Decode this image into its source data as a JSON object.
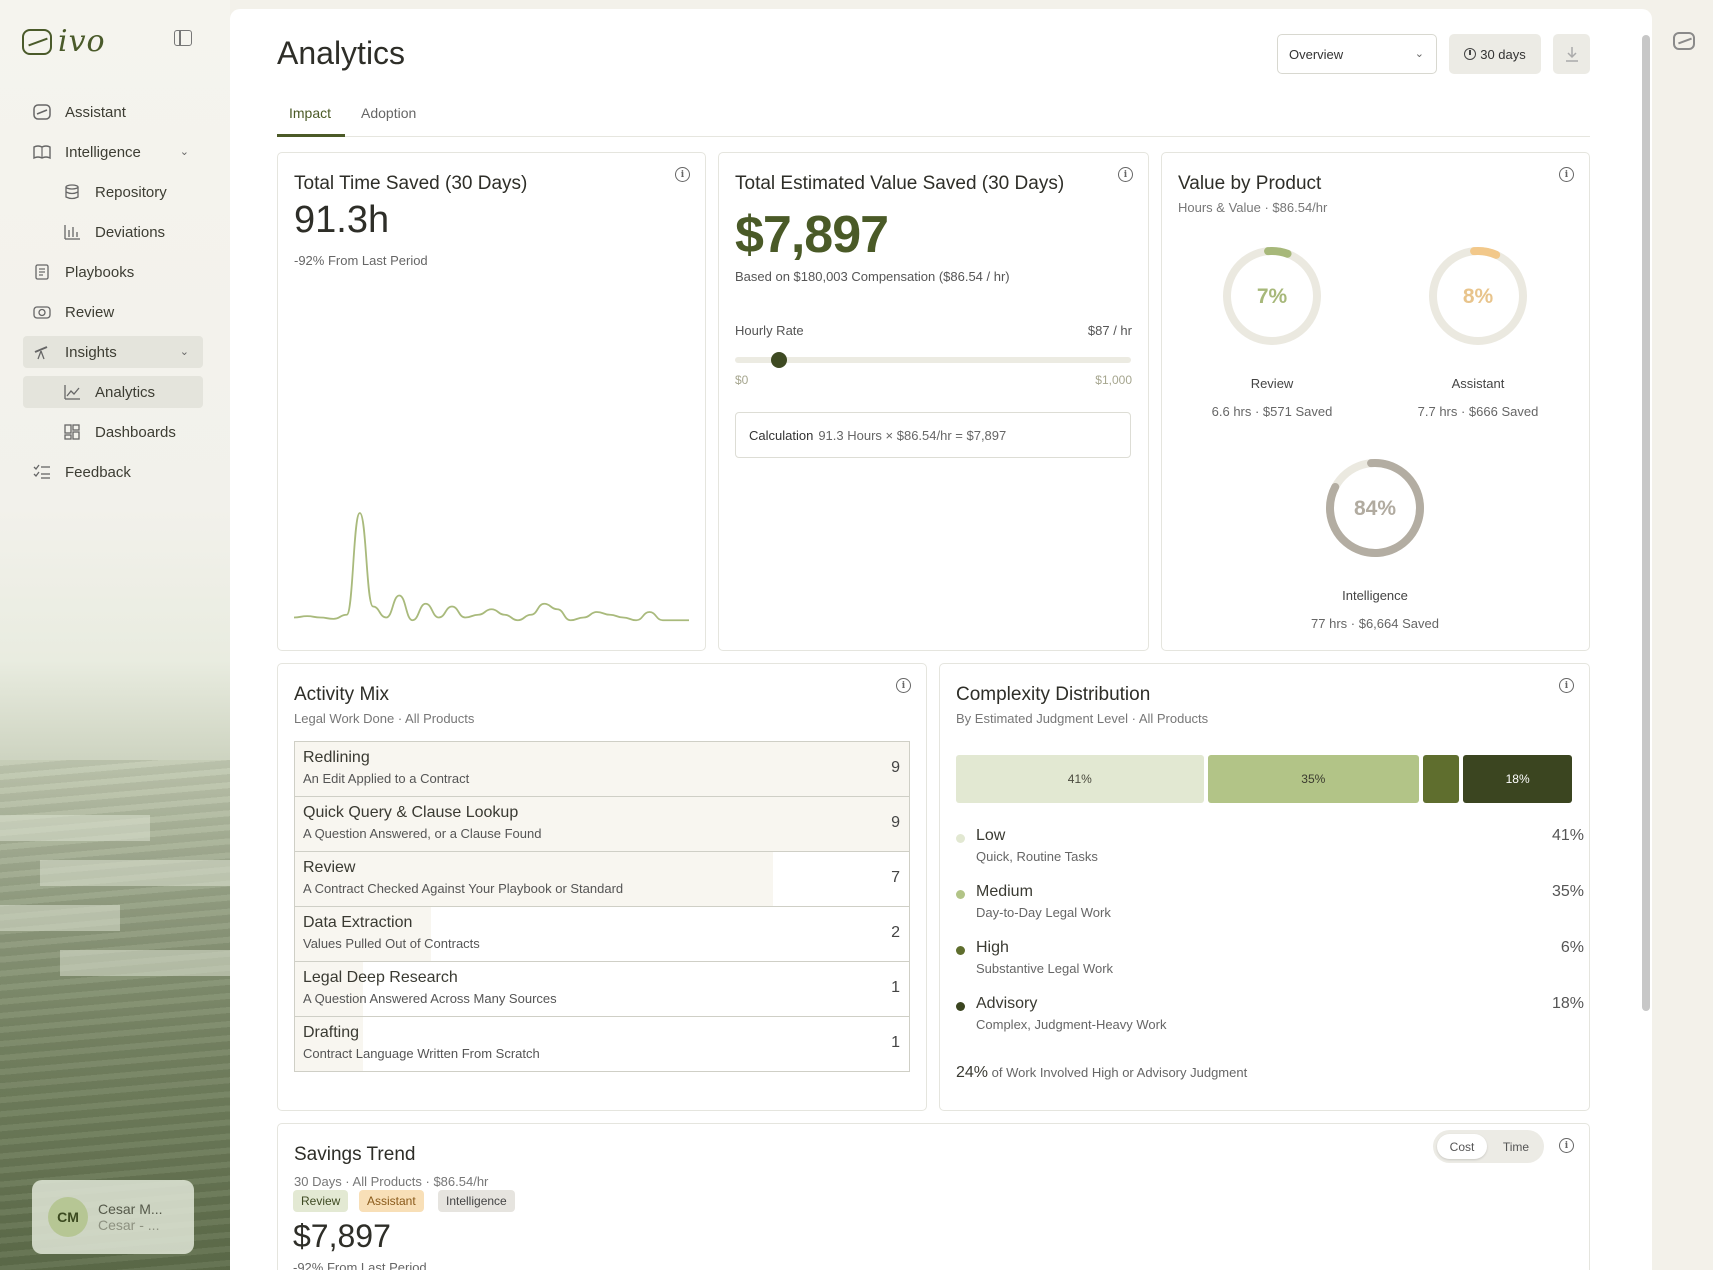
{
  "brand": {
    "name": "ivo"
  },
  "sidebar": {
    "items": [
      {
        "label": "Assistant"
      },
      {
        "label": "Intelligence"
      },
      {
        "label": "Repository"
      },
      {
        "label": "Deviations"
      },
      {
        "label": "Playbooks"
      },
      {
        "label": "Review"
      },
      {
        "label": "Insights"
      },
      {
        "label": "Analytics"
      },
      {
        "label": "Dashboards"
      },
      {
        "label": "Feedback"
      }
    ],
    "user": {
      "initials": "CM",
      "name": "Cesar M...",
      "sub": "Cesar - ..."
    }
  },
  "header": {
    "title": "Analytics",
    "view_select": "Overview",
    "range": "30 days"
  },
  "tabs": [
    {
      "label": "Impact"
    },
    {
      "label": "Adoption"
    }
  ],
  "time_saved": {
    "title": "Total Time Saved (30 Days)",
    "value": "91.3h",
    "delta": "-92% From Last Period",
    "sparkline": [
      2,
      2.5,
      2,
      1.5,
      3,
      40,
      6,
      2,
      10,
      1,
      7,
      2,
      6,
      2,
      3,
      5,
      3,
      1,
      3,
      7,
      5,
      1,
      2,
      4,
      3,
      2,
      1,
      4,
      1,
      1,
      1
    ]
  },
  "value_saved": {
    "title": "Total Estimated Value Saved (30 Days)",
    "value": "$7,897",
    "based_on": "Based on $180,003 Compensation ($86.54 / hr)",
    "rate_label": "Hourly Rate",
    "rate_value": "$87 / hr",
    "slider": {
      "min": 0,
      "max": 1000,
      "value": 87,
      "min_label": "$0",
      "max_label": "$1,000"
    },
    "calc_label": "Calculation",
    "calc_formula": "91.3 Hours × $86.54/hr = $7,897"
  },
  "value_by_product": {
    "title": "Value by Product",
    "subtitle": "Hours & Value · $86.54/hr",
    "products": [
      {
        "name": "Review",
        "pct": 7,
        "pct_label": "7%",
        "detail": "6.6 hrs · $571 Saved",
        "color": "#a7b87a",
        "text_color": "#a7b87a"
      },
      {
        "name": "Assistant",
        "pct": 8,
        "pct_label": "8%",
        "detail": "7.7 hrs · $666 Saved",
        "color": "#f2c88a",
        "text_color": "#e8c48c"
      },
      {
        "name": "Intelligence",
        "pct": 84,
        "pct_label": "84%",
        "detail": "77 hrs · $6,664 Saved",
        "color": "#b3ada2",
        "text_color": "#b1aba0"
      }
    ]
  },
  "activity_mix": {
    "title": "Activity Mix",
    "subtitle": "Legal Work Done · All Products",
    "max": 9,
    "rows": [
      {
        "name": "Redlining",
        "desc": "An Edit Applied to a Contract",
        "count": 9
      },
      {
        "name": "Quick Query & Clause Lookup",
        "desc": "A Question Answered, or a Clause Found",
        "count": 9
      },
      {
        "name": "Review",
        "desc": "A Contract Checked Against Your Playbook or Standard",
        "count": 7
      },
      {
        "name": "Data Extraction",
        "desc": "Values Pulled Out of Contracts",
        "count": 2
      },
      {
        "name": "Legal Deep Research",
        "desc": "A Question Answered Across Many Sources",
        "count": 1
      },
      {
        "name": "Drafting",
        "desc": "Contract Language Written From Scratch",
        "count": 1
      }
    ]
  },
  "complexity": {
    "title": "Complexity Distribution",
    "subtitle": "By Estimated Judgment Level · All Products",
    "segments": [
      {
        "pct": 41,
        "label": "41%",
        "color": "#e2e8d2",
        "text": "#4a4a3e"
      },
      {
        "pct": 35,
        "label": "35%",
        "color": "#b2c487",
        "text": "#3a3a2e"
      },
      {
        "pct": 6,
        "label": "",
        "color": "#5f6e2e",
        "text": "#ffffff"
      },
      {
        "pct": 18,
        "label": "18%",
        "color": "#3b4520",
        "text": "#ffffff"
      }
    ],
    "levels": [
      {
        "name": "Low",
        "desc": "Quick, Routine Tasks",
        "pct": "41%",
        "color": "#e2e8d2"
      },
      {
        "name": "Medium",
        "desc": "Day-to-Day Legal Work",
        "pct": "35%",
        "color": "#b2c487"
      },
      {
        "name": "High",
        "desc": "Substantive Legal Work",
        "pct": "6%",
        "color": "#5f6e2e"
      },
      {
        "name": "Advisory",
        "desc": "Complex, Judgment-Heavy Work",
        "pct": "18%",
        "color": "#3b4520"
      }
    ],
    "footer_strong": "24%",
    "footer_text": "of Work Involved High or Advisory Judgment"
  },
  "savings_trend": {
    "title": "Savings Trend",
    "subtitle": "30 Days · All Products · $86.54/hr",
    "toggle": {
      "cost": "Cost",
      "time": "Time"
    },
    "chips": [
      {
        "label": "Review",
        "bg": "#e3e9d3",
        "fg": "#3e4a22"
      },
      {
        "label": "Assistant",
        "bg": "#f8dfb7",
        "fg": "#8a5a1a"
      },
      {
        "label": "Intelligence",
        "bg": "#e6e4df",
        "fg": "#444"
      }
    ],
    "value": "$7,897",
    "delta": "-92% From Last Period"
  }
}
